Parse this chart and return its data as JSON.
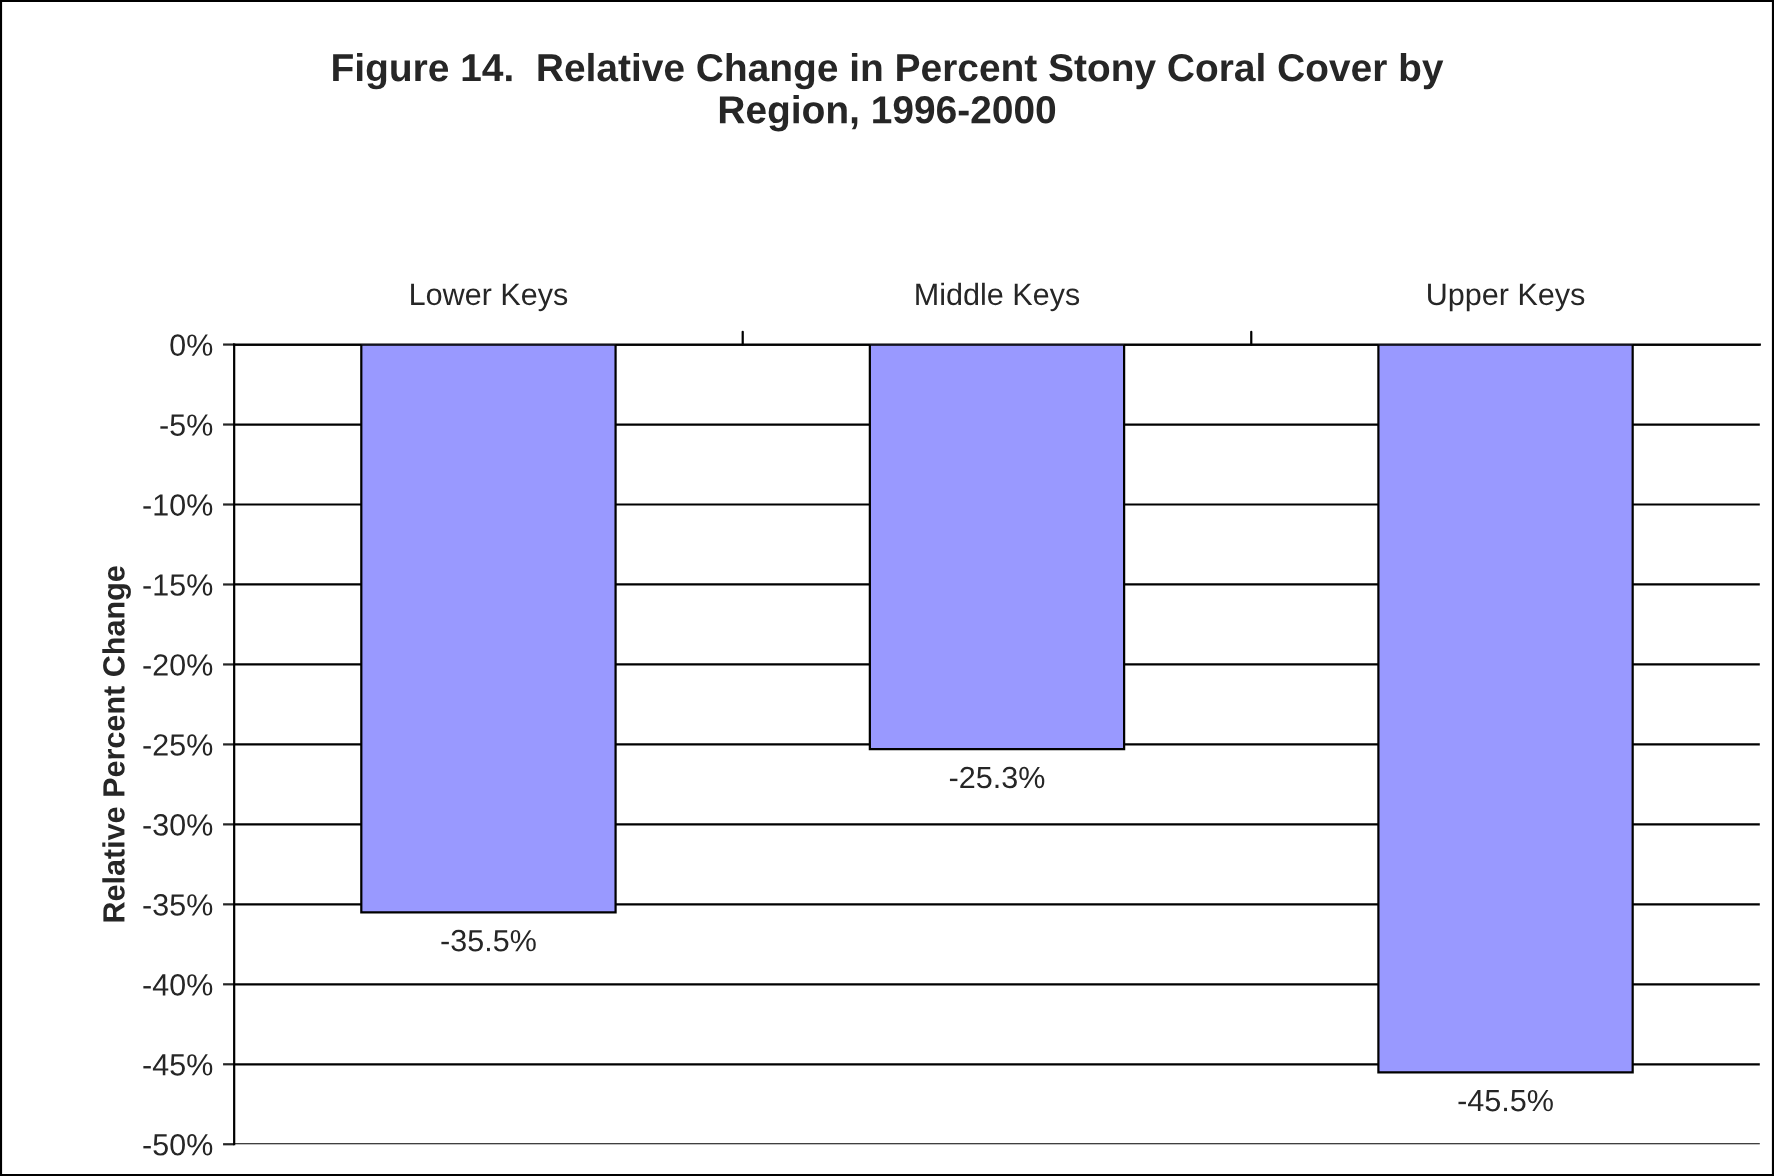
{
  "chart_data": {
    "type": "bar",
    "title": "Figure 14.  Relative Change in Percent Stony Coral Cover by\nRegion, 1996-2000",
    "ylabel": "Relative Percent Change",
    "categories": [
      "Lower Keys",
      "Middle Keys",
      "Upper Keys"
    ],
    "values": [
      -35.5,
      -25.3,
      -45.5
    ],
    "value_labels": [
      "-35.5%",
      "-25.3%",
      "-45.5%"
    ],
    "color": "#9999ff",
    "ylim": [
      -50,
      0
    ],
    "yticks": [
      {
        "value": 0,
        "label": "0%"
      },
      {
        "value": -5,
        "label": "-5%"
      },
      {
        "value": -10,
        "label": "-10%"
      },
      {
        "value": -15,
        "label": "-15%"
      },
      {
        "value": -20,
        "label": "-20%"
      },
      {
        "value": -25,
        "label": "-25%"
      },
      {
        "value": -30,
        "label": "-30%"
      },
      {
        "value": -35,
        "label": "-35%"
      },
      {
        "value": -40,
        "label": "-40%"
      },
      {
        "value": -45,
        "label": "-45%"
      },
      {
        "value": -50,
        "label": "-50%"
      }
    ],
    "grid": "y"
  }
}
